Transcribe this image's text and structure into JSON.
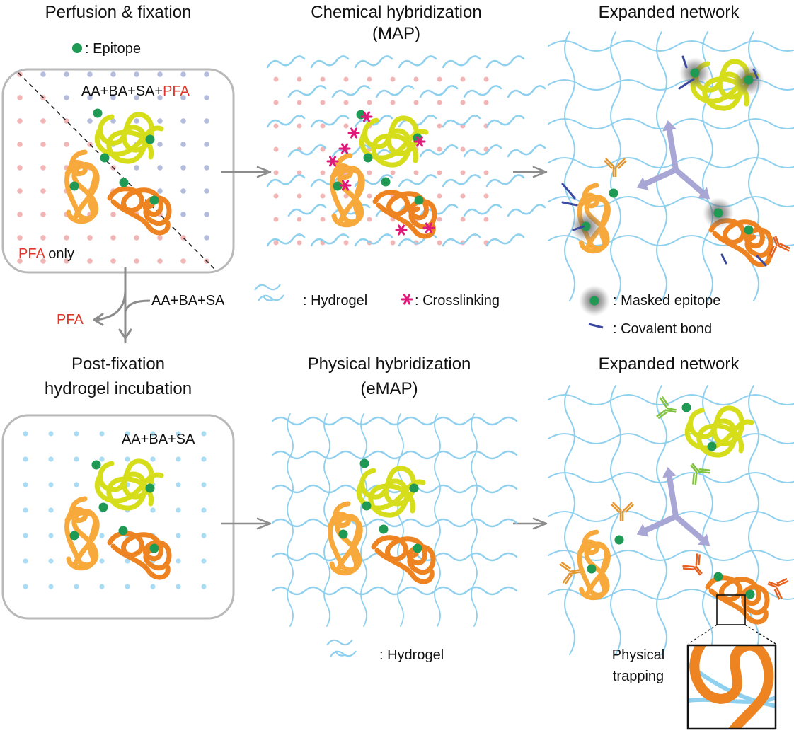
{
  "colors": {
    "epitope": "#1f9a55",
    "hydrogel": "#8fd0ee",
    "pfa_red": "#e0352a",
    "crosslink": "#e0187a",
    "yellow_protein": "#d6de1c",
    "light_orange_protein": "#f7a93b",
    "orange_protein": "#ee8421",
    "covalent_bond": "#3b4aa0",
    "expansion_arrow": "#a8a6d4",
    "antibody_green": "#82c241",
    "antibody_orange": "#e4962e",
    "antibody_dark_orange": "#e5601d",
    "dot_blue_gray": "#b4bcdd",
    "dot_pink": "#f2b5b5",
    "dot_light_blue": "#a9dcf3",
    "arrow_gray": "#8c8c8c"
  },
  "top_row": {
    "panel1": {
      "title": "Perfusion & fixation",
      "legend_epitope": ": Epitope",
      "label_a": "AA+BA+SA+",
      "label_a_red": "PFA",
      "label_b_red": "PFA",
      "label_b": " only"
    },
    "panel2": {
      "title_line1": "Chemical hybridization",
      "title_line2": "(MAP)",
      "legend_hydrogel": ": Hydrogel",
      "legend_crosslinking": ": Crosslinking"
    },
    "panel3": {
      "title": "Expanded network",
      "legend_masked": ": Masked epitope",
      "legend_covalent": ": Covalent bond"
    }
  },
  "split": {
    "to_left": "PFA",
    "reagent": "AA+BA+SA"
  },
  "bottom_row": {
    "panel1": {
      "title_line1": "Post-fixation",
      "title_line2": "hydrogel incubation",
      "label": "AA+BA+SA"
    },
    "panel2": {
      "title_line1": "Physical hybridization",
      "title_line2": "(eMAP)",
      "legend_hydrogel": ": Hydrogel"
    },
    "panel3": {
      "title": "Expanded network",
      "inset_line1": "Physical",
      "inset_line2": "trapping"
    }
  }
}
